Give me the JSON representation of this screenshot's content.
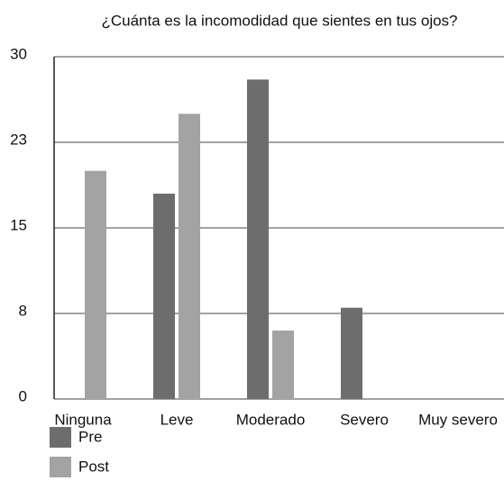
{
  "chart_data": {
    "type": "bar",
    "title": "¿Cuánta es la incomodidad que sientes en tus ojos?",
    "categories": [
      "Ninguna",
      "Leve",
      "Moderado",
      "Severo",
      "Muy severo"
    ],
    "series": [
      {
        "name": "Pre",
        "color": "#6d6d6d",
        "values": [
          0,
          18,
          28,
          8,
          0
        ]
      },
      {
        "name": "Post",
        "color": "#a3a3a3",
        "values": [
          20,
          25,
          6,
          0,
          0
        ]
      }
    ],
    "ylim": [
      0,
      30
    ],
    "yticks": [
      0,
      {
        "value": 7.5,
        "label": "8"
      },
      15,
      {
        "value": 22.5,
        "label": "23"
      },
      30
    ],
    "grid": true
  }
}
